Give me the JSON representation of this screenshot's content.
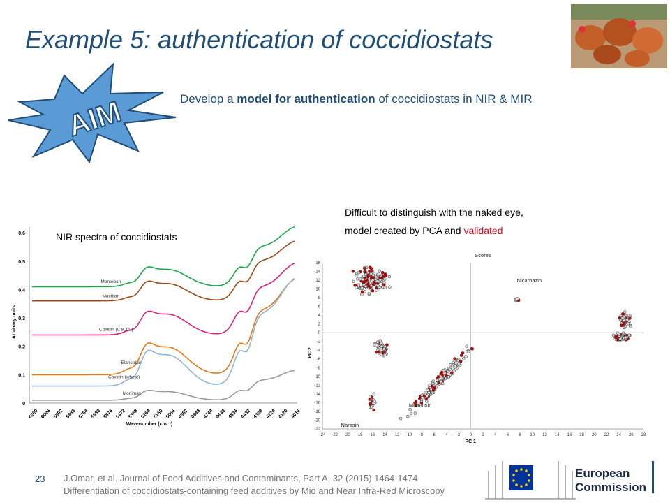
{
  "title": "Example 5: authentication of coccidiostats",
  "aim_badge": "AIM",
  "aim_text": {
    "pre": "Develop a ",
    "bold": "model for authentication",
    "post": " of coccidiostats in NIR & MIR"
  },
  "nir_label": "NIR spectra of coccidiostats",
  "pca_caption": {
    "line1": "Difficult to distinguish with the naked eye,",
    "line2_pre": "model created by PCA and ",
    "line2_red": "validated"
  },
  "slide_number": "23",
  "reference": {
    "line1": "J.Omar, et al. Journal of Food Additives and Contaminants, Part A, 32 (2015) 1464-1474",
    "line2": "Differentiation of coccidiostats-containing feed additives by Mid and Near Infra-Red Microscopy"
  },
  "ec_logo": {
    "line1": "European",
    "line2": "Commission"
  },
  "colors": {
    "title": "#1f4e79",
    "accent_red": "#e0001b",
    "aim_fill": "#5b9bd5"
  },
  "chart_data": [
    {
      "type": "line",
      "ylabel": "Arbitrary units",
      "xlabel": "Wavenumber (cm⁻¹)",
      "y_ticks": [
        "0",
        "0,1",
        "0,2",
        "0,3",
        "0,4",
        "0,5",
        "0,6"
      ],
      "ylim": [
        0,
        0.62
      ],
      "x_ticks": [
        "6200",
        "6096",
        "5992",
        "5888",
        "5784",
        "5680",
        "5576",
        "5472",
        "5368",
        "5264",
        "5160",
        "5056",
        "4952",
        "4848",
        "4744",
        "4640",
        "4536",
        "4432",
        "4328",
        "4224",
        "4120",
        "4016"
      ],
      "series": [
        {
          "name": "Monteban",
          "color": "#1aa64a",
          "base": 0.41
        },
        {
          "name": "Maxiban",
          "color": "#9c4a1a",
          "base": 0.36
        },
        {
          "name": "Coxidin (CaCO₃)",
          "color": "#e0207a",
          "base": 0.24
        },
        {
          "name": "Elancoban",
          "color": "#e07a1a",
          "base": 0.1
        },
        {
          "name": "Coxidin (wheat)",
          "color": "#8fb4d9",
          "base": 0.06
        },
        {
          "name": "Monimax",
          "color": "#9a9a9a",
          "base": 0.01
        }
      ]
    },
    {
      "type": "scatter",
      "title": "Scores",
      "xlabel": "PC 1",
      "ylabel": "PC 2",
      "xlim": [
        -24,
        28
      ],
      "ylim": [
        -22,
        16
      ],
      "x_ticks": [
        -24,
        -22,
        -20,
        -18,
        -16,
        -14,
        -12,
        -10,
        -8,
        -6,
        -4,
        -2,
        0,
        2,
        4,
        6,
        8,
        10,
        12,
        14,
        16,
        18,
        20,
        22,
        24,
        26,
        28
      ],
      "y_ticks": [
        16,
        14,
        12,
        10,
        8,
        6,
        4,
        2,
        0,
        -2,
        -4,
        -6,
        -8,
        -10,
        -12,
        -14,
        -16,
        -18,
        -20,
        -22
      ],
      "groups": [
        {
          "label": "",
          "cx": -16,
          "cy": 12
        },
        {
          "label": "",
          "cx": -14.5,
          "cy": -3.5
        },
        {
          "label": "Narasin",
          "cx": -16,
          "cy": -15.5
        },
        {
          "label": "Monensin",
          "cx": -5,
          "cy": -11
        },
        {
          "label": "Nicarbazin",
          "cx": 7.5,
          "cy": 7.5
        },
        {
          "label": "",
          "cx": 25,
          "cy": 3
        },
        {
          "label": "",
          "cx": 24.5,
          "cy": -1
        }
      ]
    }
  ]
}
